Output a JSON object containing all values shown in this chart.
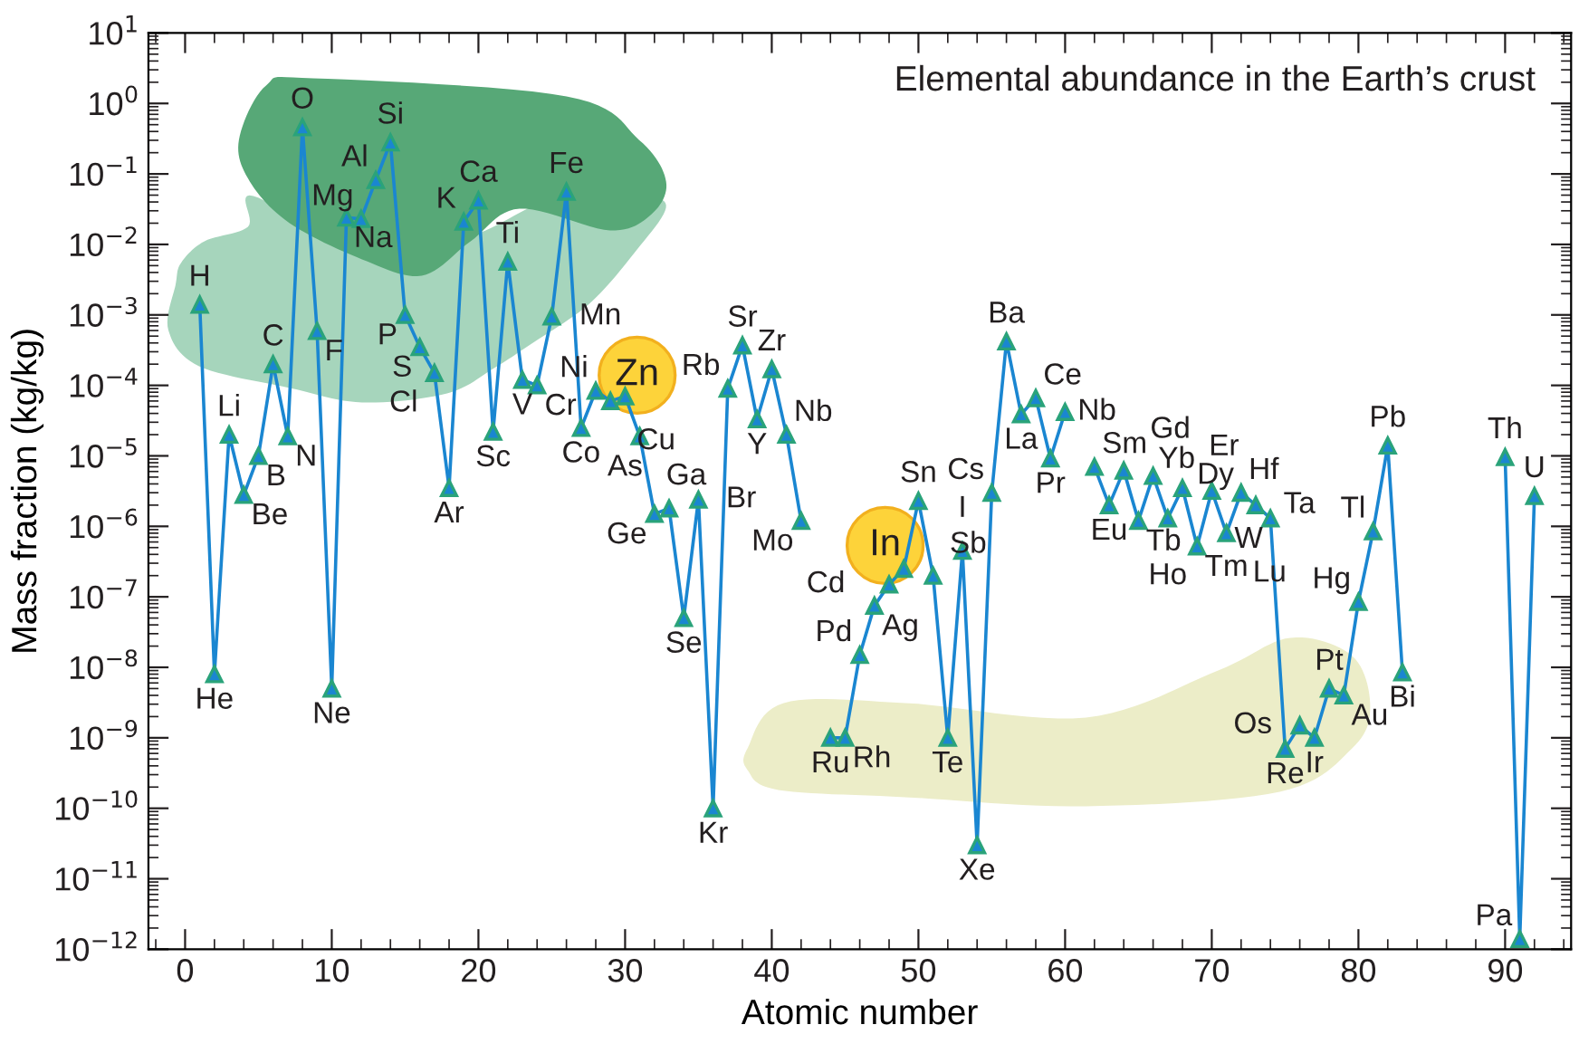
{
  "chart_data": {
    "type": "line",
    "title": "Elemental abundance in the Earth’s crust",
    "xlabel": "Atomic number",
    "ylabel": "Mass fraction (kg/kg)",
    "log": "y",
    "grid": false,
    "legend": false,
    "marker": "triangle",
    "line_style": "solid",
    "xlim": [
      -2.5,
      94.5
    ],
    "xticks": [
      0,
      10,
      20,
      30,
      40,
      50,
      60,
      70,
      80,
      90
    ],
    "ylim": [
      1e-12,
      10
    ],
    "yticks": [
      {
        "value": 10,
        "label": "10$^{1}$"
      },
      {
        "value": 1,
        "label": "10$^{0}$"
      },
      {
        "value": 0.1,
        "label": "10$^{−1}$"
      },
      {
        "value": 0.01,
        "label": "10$^{−2}$"
      },
      {
        "value": 0.001,
        "label": "10$^{−3}$"
      },
      {
        "value": 0.0001,
        "label": "10$^{−4}$"
      },
      {
        "value": 1e-05,
        "label": "10$^{−5}$"
      },
      {
        "value": 1e-06,
        "label": "10$^{−6}$"
      },
      {
        "value": 1e-07,
        "label": "10$^{−7}$"
      },
      {
        "value": 1e-08,
        "label": "10$^{−8}$"
      },
      {
        "value": 1e-09,
        "label": "10$^{−9}$"
      },
      {
        "value": 1e-10,
        "label": "10$^{−10}$"
      },
      {
        "value": 1e-11,
        "label": "10$^{−11}$"
      },
      {
        "value": 1e-12,
        "label": "10$^{−12}$"
      }
    ],
    "x": [
      1,
      2,
      3,
      4,
      5,
      6,
      7,
      8,
      9,
      10,
      11,
      12,
      13,
      14,
      15,
      16,
      17,
      18,
      19,
      20,
      21,
      22,
      23,
      24,
      25,
      26,
      27,
      28,
      29,
      30,
      31,
      32,
      33,
      34,
      35,
      36,
      37,
      38,
      39,
      40,
      41,
      42,
      43,
      44,
      45,
      46,
      47,
      48,
      49,
      50,
      51,
      52,
      53,
      54,
      55,
      56,
      57,
      58,
      59,
      60,
      61,
      62,
      63,
      64,
      65,
      66,
      67,
      68,
      69,
      70,
      71,
      72,
      73,
      74,
      75,
      76,
      77,
      78,
      79,
      80,
      81,
      82,
      83,
      84,
      85,
      86,
      87,
      88,
      89,
      90,
      91,
      92
    ],
    "series": [
      {
        "color": "#1a86d1",
        "values": [
          0.0014,
          8e-09,
          2e-05,
          2.8e-06,
          1e-05,
          0.0002,
          1.9e-05,
          0.46,
          0.00059,
          5e-09,
          0.024,
          0.023,
          0.082,
          0.28,
          0.001,
          0.00035,
          0.00015,
          3.5e-06,
          0.021,
          0.042,
          2.2e-05,
          0.0057,
          0.00012,
          0.0001,
          0.00095,
          0.056,
          2.5e-05,
          8.4e-05,
          6e-05,
          7e-05,
          1.9e-05,
          1.5e-06,
          1.8e-06,
          5e-08,
          2.4e-06,
          1e-10,
          9e-05,
          0.00037,
          3.3e-05,
          0.00017,
          2e-05,
          1.2e-06,
          null,
          1e-09,
          1e-09,
          1.5e-08,
          7.5e-08,
          1.5e-07,
          2.5e-07,
          2.3e-06,
          2e-07,
          1e-09,
          4.5e-07,
          3e-11,
          3e-06,
          0.00042,
          3.9e-05,
          6.6e-05,
          9.2e-06,
          4.2e-05,
          null,
          7e-06,
          2e-06,
          6.2e-06,
          1.2e-06,
          5.2e-06,
          1.3e-06,
          3.5e-06,
          5.2e-07,
          3.2e-06,
          8e-07,
          3e-06,
          2e-06,
          1.3e-06,
          7e-10,
          1.5e-09,
          1e-09,
          5e-09,
          4e-09,
          8.5e-08,
          8.5e-07,
          1.4e-05,
          8.5e-09,
          null,
          null,
          null,
          null,
          null,
          null,
          9.6e-06,
          1.4e-12,
          2.7e-06
        ]
      }
    ],
    "annotations": [
      {
        "text": "H",
        "x": 1,
        "y": 0.0014
      },
      {
        "text": "He",
        "x": 2,
        "y": 8e-09
      },
      {
        "text": "Li",
        "x": 3,
        "y": 2e-05
      },
      {
        "text": "Be",
        "x": 4,
        "y": 2.8e-06
      },
      {
        "text": "B",
        "x": 5,
        "y": 1e-05
      },
      {
        "text": "C",
        "x": 6,
        "y": 0.0002
      },
      {
        "text": "N",
        "x": 7,
        "y": 1.9e-05
      },
      {
        "text": "O",
        "x": 8,
        "y": 0.46
      },
      {
        "text": "F",
        "x": 9,
        "y": 0.00059
      },
      {
        "text": "Ne",
        "x": 10,
        "y": 5e-09
      },
      {
        "text": "Na",
        "x": 11,
        "y": 0.024
      },
      {
        "text": "Mg",
        "x": 12,
        "y": 0.023
      },
      {
        "text": "Al",
        "x": 13,
        "y": 0.082
      },
      {
        "text": "Si",
        "x": 14,
        "y": 0.28
      },
      {
        "text": "P",
        "x": 15,
        "y": 0.001
      },
      {
        "text": "S",
        "x": 16,
        "y": 0.00035
      },
      {
        "text": "Cl",
        "x": 17,
        "y": 0.00015
      },
      {
        "text": "Ar",
        "x": 18,
        "y": 3.5e-06
      },
      {
        "text": "K",
        "x": 19,
        "y": 0.021
      },
      {
        "text": "Ca",
        "x": 20,
        "y": 0.042
      },
      {
        "text": "Sc",
        "x": 21,
        "y": 2.2e-05
      },
      {
        "text": "Ti",
        "x": 22,
        "y": 0.0057
      },
      {
        "text": "V",
        "x": 23,
        "y": 0.00012
      },
      {
        "text": "Cr",
        "x": 24,
        "y": 0.0001
      },
      {
        "text": "Mn",
        "x": 25,
        "y": 0.00095
      },
      {
        "text": "Fe",
        "x": 26,
        "y": 0.056
      },
      {
        "text": "Co",
        "x": 27,
        "y": 2.5e-05
      },
      {
        "text": "Ni",
        "x": 28,
        "y": 8.4e-05
      },
      {
        "text": "Cu",
        "x": 29,
        "y": 6e-05
      },
      {
        "text": "Zn",
        "x": 30,
        "y": 7e-05
      },
      {
        "text": "Ga",
        "x": 31,
        "y": 1.9e-05
      },
      {
        "text": "Ge",
        "x": 32,
        "y": 1.5e-06
      },
      {
        "text": "As",
        "x": 33,
        "y": 1.8e-06
      },
      {
        "text": "Se",
        "x": 34,
        "y": 5e-08
      },
      {
        "text": "Br",
        "x": 35,
        "y": 2.4e-06
      },
      {
        "text": "Kr",
        "x": 36,
        "y": 1e-10
      },
      {
        "text": "Rb",
        "x": 37,
        "y": 9e-05
      },
      {
        "text": "Sr",
        "x": 38,
        "y": 0.00037
      },
      {
        "text": "Y",
        "x": 39,
        "y": 3.3e-05
      },
      {
        "text": "Zr",
        "x": 40,
        "y": 0.00017
      },
      {
        "text": "Nb",
        "x": 41,
        "y": 2e-05
      },
      {
        "text": "Mo",
        "x": 42,
        "y": 1.2e-06
      },
      {
        "text": "Ru",
        "x": 44,
        "y": 1e-09
      },
      {
        "text": "Rh",
        "x": 45,
        "y": 1e-09
      },
      {
        "text": "Pd",
        "x": 46,
        "y": 1.5e-08
      },
      {
        "text": "Ag",
        "x": 47,
        "y": 7.5e-08
      },
      {
        "text": "Cd",
        "x": 48,
        "y": 1.5e-07
      },
      {
        "text": "In",
        "x": 49,
        "y": 2.5e-07
      },
      {
        "text": "Sn",
        "x": 50,
        "y": 2.3e-06
      },
      {
        "text": "Sb",
        "x": 51,
        "y": 2e-07
      },
      {
        "text": "Te",
        "x": 52,
        "y": 1e-09
      },
      {
        "text": "I",
        "x": 53,
        "y": 4.5e-07
      },
      {
        "text": "Xe",
        "x": 54,
        "y": 3e-11
      },
      {
        "text": "Cs",
        "x": 55,
        "y": 3e-06
      },
      {
        "text": "Ba",
        "x": 56,
        "y": 0.00042
      },
      {
        "text": "La",
        "x": 57,
        "y": 3.9e-05
      },
      {
        "text": "Ce",
        "x": 58,
        "y": 6.6e-05
      },
      {
        "text": "Pr",
        "x": 59,
        "y": 9.2e-06
      },
      {
        "text": "Nb",
        "x": 60,
        "y": 4.2e-05
      },
      {
        "text": "Sm",
        "x": 62,
        "y": 7e-06
      },
      {
        "text": "Eu",
        "x": 63,
        "y": 2e-06
      },
      {
        "text": "Gd",
        "x": 64,
        "y": 6.2e-06
      },
      {
        "text": "Tb",
        "x": 65,
        "y": 1.2e-06
      },
      {
        "text": "Dy",
        "x": 66,
        "y": 5.2e-06
      },
      {
        "text": "Ho",
        "x": 67,
        "y": 1.3e-06
      },
      {
        "text": "Er",
        "x": 68,
        "y": 3.5e-06
      },
      {
        "text": "Tm",
        "x": 69,
        "y": 5.2e-07
      },
      {
        "text": "Yb",
        "x": 70,
        "y": 3.2e-06
      },
      {
        "text": "Lu",
        "x": 71,
        "y": 8e-07
      },
      {
        "text": "Hf",
        "x": 72,
        "y": 3e-06
      },
      {
        "text": "Ta",
        "x": 73,
        "y": 2e-06
      },
      {
        "text": "W",
        "x": 74,
        "y": 1.3e-06
      },
      {
        "text": "Re",
        "x": 75,
        "y": 7e-10
      },
      {
        "text": "Os",
        "x": 76,
        "y": 1.5e-09
      },
      {
        "text": "Ir",
        "x": 77,
        "y": 1e-09
      },
      {
        "text": "Pt",
        "x": 78,
        "y": 5e-09
      },
      {
        "text": "Au",
        "x": 79,
        "y": 4e-09
      },
      {
        "text": "Hg",
        "x": 80,
        "y": 8.5e-08
      },
      {
        "text": "Tl",
        "x": 81,
        "y": 8.5e-07
      },
      {
        "text": "Pb",
        "x": 82,
        "y": 1.4e-05
      },
      {
        "text": "Bi",
        "x": 83,
        "y": 8.5e-09
      },
      {
        "text": "Th",
        "x": 90,
        "y": 9.6e-06
      },
      {
        "text": "Pa",
        "x": 91,
        "y": 1.4e-12
      },
      {
        "text": "U",
        "x": 92,
        "y": 2.7e-06
      }
    ]
  }
}
